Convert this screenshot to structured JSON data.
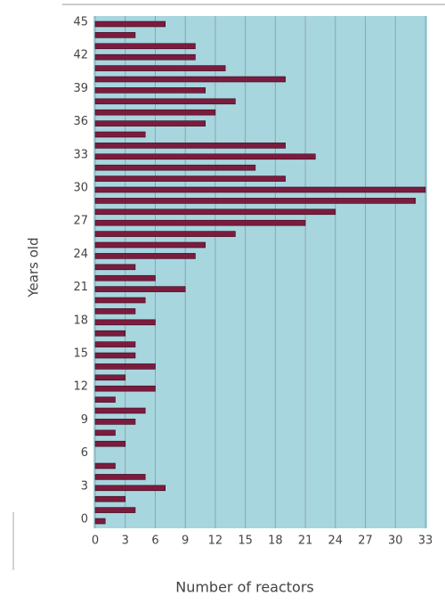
{
  "chart_data": {
    "type": "hbar",
    "x_label": "Number of reactors",
    "y_label": "Years old",
    "categories": [
      "0",
      null,
      null,
      "3",
      null,
      null,
      "6",
      null,
      null,
      "9",
      null,
      null,
      "12",
      null,
      null,
      "15",
      null,
      null,
      "18",
      null,
      null,
      "21",
      null,
      null,
      "24",
      null,
      null,
      "27",
      null,
      null,
      "30",
      null,
      null,
      "33",
      null,
      null,
      "36",
      null,
      null,
      "39",
      null,
      null,
      "42",
      null,
      null,
      "45"
    ],
    "values": [
      1,
      4,
      3,
      7,
      5,
      2,
      0,
      3,
      2,
      4,
      5,
      2,
      6,
      3,
      6,
      4,
      4,
      3,
      6,
      4,
      5,
      9,
      6,
      4,
      10,
      11,
      14,
      21,
      24,
      32,
      33,
      19,
      16,
      22,
      19,
      5,
      11,
      12,
      14,
      11,
      19,
      13,
      10,
      10,
      4,
      7
    ],
    "color": "#7b1c3e",
    "background": "#a8d6df",
    "xlim": [
      0,
      33
    ],
    "xticks": [
      0,
      3,
      6,
      9,
      12,
      15,
      18,
      21,
      24,
      27,
      30,
      33
    ],
    "grid": true
  }
}
